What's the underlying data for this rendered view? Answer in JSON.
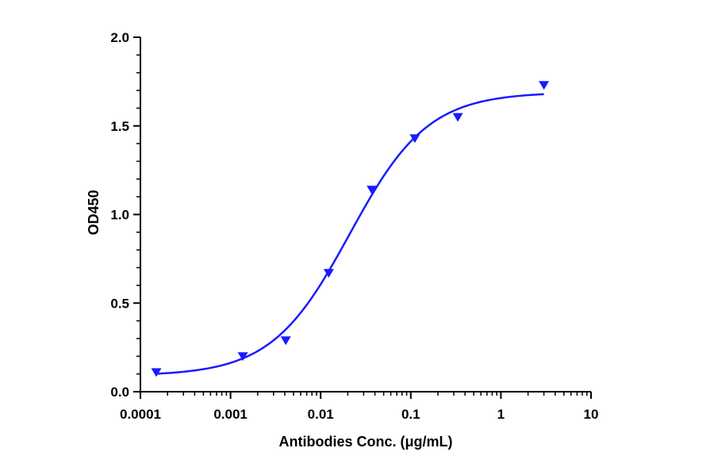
{
  "chart_data": {
    "type": "scatter",
    "title": "",
    "xlabel": "Antibodies Conc. (μg/mL)",
    "ylabel": "OD450",
    "x_scale": "log",
    "xlim": [
      0.0001,
      10
    ],
    "ylim": [
      0,
      2.0
    ],
    "x_ticks": [
      0.0001,
      0.001,
      0.01,
      0.1,
      1,
      10
    ],
    "x_tick_labels": [
      "0.0001",
      "0.001",
      "0.01",
      "0.1",
      "1",
      "10"
    ],
    "y_ticks": [
      0,
      0.5,
      1.0,
      1.5,
      2.0
    ],
    "y_tick_labels": [
      "0.0",
      "0.5",
      "1.0",
      "1.5",
      "2.0"
    ],
    "grid": false,
    "legend": "none",
    "color": "#1a1aff",
    "marker": "triangle-down",
    "series": [
      {
        "points": [
          {
            "x": 0.00015,
            "y": 0.11
          },
          {
            "x": 0.00137,
            "y": 0.2
          },
          {
            "x": 0.0041,
            "y": 0.29
          },
          {
            "x": 0.0123,
            "y": 0.67
          },
          {
            "x": 0.037,
            "y": 1.14
          },
          {
            "x": 0.111,
            "y": 1.43
          },
          {
            "x": 0.333,
            "y": 1.55
          },
          {
            "x": 3.0,
            "y": 1.73
          }
        ],
        "fit": {
          "model": "4PL",
          "bottom": 0.09,
          "top": 1.69,
          "ec50": 0.021,
          "hill": 1.0,
          "range": [
            0.00015,
            3.0
          ]
        }
      }
    ]
  }
}
